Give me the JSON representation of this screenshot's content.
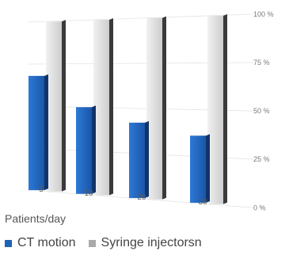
{
  "chart_data": {
    "type": "bar",
    "categories": [
      "5",
      "10",
      "20",
      "30"
    ],
    "series": [
      {
        "name": "CT motion",
        "values": [
          68,
          50,
          42,
          36
        ],
        "color": "#1f63b5"
      },
      {
        "name": "Syringe injectorsn",
        "values": [
          100,
          100,
          100,
          100
        ],
        "color": "#d7d7d7"
      }
    ],
    "yticks": [
      "0 %",
      "25 %",
      "50 %",
      "75 %",
      "100 %"
    ],
    "ylim": [
      0,
      100
    ],
    "xlabel": "Patients/day",
    "ylabel": "",
    "legend_position": "bottom-left",
    "grid": true
  }
}
